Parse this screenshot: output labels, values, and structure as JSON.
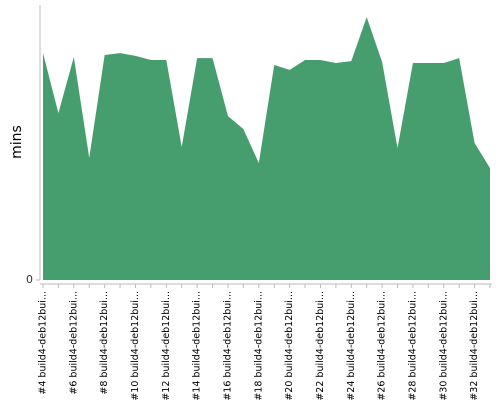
{
  "chart_data": {
    "type": "area",
    "y_label": "mins",
    "categories": [
      "#4 build4-deb12bui...",
      null,
      "#6 build4-deb12bui...",
      null,
      "#8 build4-deb12bui...",
      null,
      "#10 build4-deb12bui...",
      null,
      "#12 build4-deb12bui...",
      null,
      "#14 build4-deb12bui...",
      null,
      "#16 build4-deb12bui...",
      null,
      "#18 build4-deb12bui...",
      null,
      "#20 build4-deb12bui...",
      null,
      "#22 build4-deb12bui...",
      null,
      "#24 build4-deb12bui...",
      null,
      "#26 build4-deb12bui...",
      null,
      "#28 build4-deb12bui...",
      null,
      "#30 build4-deb12bui...",
      null,
      "#32 build4-deb12bui...",
      null
    ],
    "values": [
      82.5,
      60.7,
      81.1,
      44.4,
      81.8,
      82.5,
      81.5,
      80,
      80,
      48.4,
      80.7,
      80.7,
      59.6,
      54.9,
      42.5,
      78.2,
      76.4,
      80,
      80,
      78.9,
      79.6,
      95.6,
      79.3,
      48,
      78.9,
      78.9,
      78.9,
      80.7,
      49.8,
      40.7
    ],
    "color": "#469e6e",
    "ylim": [
      0,
      100
    ],
    "yticks": [
      0
    ]
  }
}
